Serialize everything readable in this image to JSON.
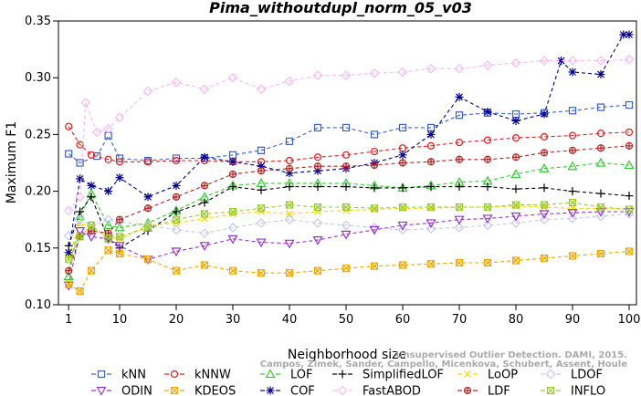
{
  "chart_data": {
    "type": "line",
    "title": "Pima_withoutdupl_norm_05_v03",
    "xlabel": "Neighborhood size",
    "ylabel": "Maximum F1",
    "xlim": [
      0,
      100
    ],
    "ylim": [
      0.1,
      0.35
    ],
    "x_ticks": [
      1,
      10,
      20,
      30,
      40,
      50,
      60,
      70,
      80,
      90,
      100
    ],
    "y_ticks": [
      "0.10",
      "0.15",
      "0.20",
      "0.25",
      "0.30",
      "0.35"
    ],
    "grid": false,
    "legend_position": "bottom",
    "credit_lines": [
      "Unsupervised Outlier Detection. DAMI, 2015.",
      "Campos, Zimek, Sander, Campello, Micenkova, Schubert, Assent, Houle"
    ],
    "series": [
      {
        "name": "kNN",
        "color": "#3a5fcd",
        "marker": "square",
        "line": "dashed",
        "points": [
          [
            1,
            0.233
          ],
          [
            3,
            0.225
          ],
          [
            6,
            0.231
          ],
          [
            8,
            0.249
          ],
          [
            10,
            0.229
          ],
          [
            15,
            0.227
          ],
          [
            20,
            0.229
          ],
          [
            25,
            0.229
          ],
          [
            30,
            0.232
          ],
          [
            35,
            0.236
          ],
          [
            40,
            0.244
          ],
          [
            45,
            0.256
          ],
          [
            50,
            0.256
          ],
          [
            55,
            0.25
          ],
          [
            60,
            0.256
          ],
          [
            65,
            0.256
          ],
          [
            70,
            0.267
          ],
          [
            75,
            0.269
          ],
          [
            80,
            0.268
          ],
          [
            85,
            0.269
          ],
          [
            90,
            0.271
          ],
          [
            95,
            0.274
          ],
          [
            100,
            0.276
          ]
        ]
      },
      {
        "name": "kNNW",
        "color": "#e41a1c",
        "marker": "circle",
        "line": "dashed",
        "points": [
          [
            1,
            0.257
          ],
          [
            3,
            0.241
          ],
          [
            5,
            0.232
          ],
          [
            8,
            0.228
          ],
          [
            10,
            0.226
          ],
          [
            15,
            0.226
          ],
          [
            20,
            0.227
          ],
          [
            25,
            0.227
          ],
          [
            30,
            0.226
          ],
          [
            35,
            0.226
          ],
          [
            40,
            0.227
          ],
          [
            45,
            0.23
          ],
          [
            50,
            0.232
          ],
          [
            55,
            0.235
          ],
          [
            60,
            0.238
          ],
          [
            65,
            0.24
          ],
          [
            70,
            0.243
          ],
          [
            75,
            0.245
          ],
          [
            80,
            0.247
          ],
          [
            85,
            0.248
          ],
          [
            90,
            0.249
          ],
          [
            95,
            0.251
          ],
          [
            100,
            0.252
          ]
        ]
      },
      {
        "name": "LOF",
        "color": "#33cc33",
        "marker": "triangle-up",
        "line": "dashed",
        "points": [
          [
            1,
            0.125
          ],
          [
            3,
            0.178
          ],
          [
            5,
            0.198
          ],
          [
            8,
            0.17
          ],
          [
            10,
            0.168
          ],
          [
            15,
            0.172
          ],
          [
            20,
            0.183
          ],
          [
            25,
            0.195
          ],
          [
            30,
            0.205
          ],
          [
            35,
            0.207
          ],
          [
            40,
            0.207
          ],
          [
            45,
            0.207
          ],
          [
            50,
            0.207
          ],
          [
            55,
            0.205
          ],
          [
            60,
            0.203
          ],
          [
            65,
            0.205
          ],
          [
            70,
            0.208
          ],
          [
            75,
            0.209
          ],
          [
            80,
            0.215
          ],
          [
            85,
            0.22
          ],
          [
            90,
            0.222
          ],
          [
            95,
            0.225
          ],
          [
            100,
            0.223
          ]
        ]
      },
      {
        "name": "SimplifiedLOF",
        "color": "#000000",
        "marker": "plus",
        "line": "dashed",
        "points": [
          [
            1,
            0.152
          ],
          [
            3,
            0.182
          ],
          [
            5,
            0.195
          ],
          [
            8,
            0.158
          ],
          [
            10,
            0.15
          ],
          [
            15,
            0.165
          ],
          [
            20,
            0.182
          ],
          [
            25,
            0.19
          ],
          [
            30,
            0.204
          ],
          [
            35,
            0.201
          ],
          [
            40,
            0.204
          ],
          [
            45,
            0.204
          ],
          [
            50,
            0.204
          ],
          [
            55,
            0.203
          ],
          [
            60,
            0.203
          ],
          [
            65,
            0.204
          ],
          [
            70,
            0.204
          ],
          [
            75,
            0.204
          ],
          [
            80,
            0.202
          ],
          [
            85,
            0.203
          ],
          [
            90,
            0.2
          ],
          [
            95,
            0.198
          ],
          [
            100,
            0.196
          ]
        ]
      },
      {
        "name": "LoOP",
        "color": "#ffd700",
        "marker": "x",
        "line": "dashed",
        "points": [
          [
            1,
            0.142
          ],
          [
            3,
            0.172
          ],
          [
            5,
            0.168
          ],
          [
            8,
            0.16
          ],
          [
            10,
            0.158
          ],
          [
            15,
            0.17
          ],
          [
            20,
            0.172
          ],
          [
            25,
            0.176
          ],
          [
            30,
            0.18
          ],
          [
            35,
            0.182
          ],
          [
            40,
            0.18
          ],
          [
            45,
            0.182
          ],
          [
            50,
            0.183
          ],
          [
            55,
            0.184
          ],
          [
            60,
            0.185
          ],
          [
            65,
            0.185
          ],
          [
            70,
            0.186
          ],
          [
            75,
            0.186
          ],
          [
            80,
            0.187
          ],
          [
            85,
            0.186
          ],
          [
            90,
            0.185
          ],
          [
            95,
            0.185
          ],
          [
            100,
            0.184
          ]
        ]
      },
      {
        "name": "LDOF",
        "color": "#c4c8ec",
        "marker": "diamond",
        "line": "dashed",
        "points": [
          [
            1,
            0.161
          ],
          [
            3,
            0.175
          ],
          [
            5,
            0.17
          ],
          [
            8,
            0.175
          ],
          [
            10,
            0.173
          ],
          [
            15,
            0.17
          ],
          [
            20,
            0.166
          ],
          [
            25,
            0.163
          ],
          [
            30,
            0.168
          ],
          [
            35,
            0.172
          ],
          [
            40,
            0.175
          ],
          [
            45,
            0.172
          ],
          [
            50,
            0.17
          ],
          [
            55,
            0.168
          ],
          [
            60,
            0.166
          ],
          [
            65,
            0.167
          ],
          [
            70,
            0.168
          ],
          [
            75,
            0.17
          ],
          [
            80,
            0.172
          ],
          [
            85,
            0.175
          ],
          [
            90,
            0.176
          ],
          [
            95,
            0.178
          ],
          [
            100,
            0.18
          ]
        ]
      },
      {
        "name": "ODIN",
        "color": "#9933cc",
        "marker": "triangle-down",
        "line": "dashed",
        "points": [
          [
            1,
            0.117
          ],
          [
            3,
            0.165
          ],
          [
            5,
            0.16
          ],
          [
            8,
            0.158
          ],
          [
            10,
            0.152
          ],
          [
            15,
            0.14
          ],
          [
            20,
            0.147
          ],
          [
            25,
            0.152
          ],
          [
            30,
            0.158
          ],
          [
            35,
            0.155
          ],
          [
            40,
            0.154
          ],
          [
            45,
            0.157
          ],
          [
            50,
            0.162
          ],
          [
            55,
            0.166
          ],
          [
            60,
            0.17
          ],
          [
            65,
            0.172
          ],
          [
            70,
            0.175
          ],
          [
            75,
            0.176
          ],
          [
            80,
            0.178
          ],
          [
            85,
            0.18
          ],
          [
            90,
            0.181
          ],
          [
            95,
            0.182
          ],
          [
            100,
            0.182
          ]
        ]
      },
      {
        "name": "KDEOS",
        "color": "#f0a800",
        "marker": "square-x",
        "line": "dashed",
        "points": [
          [
            1,
            0.118
          ],
          [
            3,
            0.112
          ],
          [
            5,
            0.13
          ],
          [
            8,
            0.148
          ],
          [
            10,
            0.145
          ],
          [
            15,
            0.14
          ],
          [
            20,
            0.13
          ],
          [
            25,
            0.135
          ],
          [
            30,
            0.13
          ],
          [
            35,
            0.128
          ],
          [
            40,
            0.128
          ],
          [
            45,
            0.13
          ],
          [
            50,
            0.132
          ],
          [
            55,
            0.134
          ],
          [
            60,
            0.135
          ],
          [
            65,
            0.136
          ],
          [
            70,
            0.137
          ],
          [
            75,
            0.137
          ],
          [
            80,
            0.139
          ],
          [
            85,
            0.141
          ],
          [
            90,
            0.143
          ],
          [
            95,
            0.145
          ],
          [
            100,
            0.147
          ]
        ]
      },
      {
        "name": "COF",
        "color": "#00008b",
        "marker": "asterisk",
        "line": "dashed",
        "points": [
          [
            1,
            0.146
          ],
          [
            3,
            0.211
          ],
          [
            5,
            0.205
          ],
          [
            8,
            0.2
          ],
          [
            10,
            0.212
          ],
          [
            15,
            0.195
          ],
          [
            20,
            0.205
          ],
          [
            25,
            0.23
          ],
          [
            30,
            0.226
          ],
          [
            35,
            0.222
          ],
          [
            40,
            0.216
          ],
          [
            45,
            0.218
          ],
          [
            50,
            0.22
          ],
          [
            55,
            0.225
          ],
          [
            60,
            0.232
          ],
          [
            65,
            0.25
          ],
          [
            70,
            0.283
          ],
          [
            75,
            0.27
          ],
          [
            80,
            0.262
          ],
          [
            85,
            0.268
          ],
          [
            88,
            0.315
          ],
          [
            90,
            0.305
          ],
          [
            95,
            0.303
          ],
          [
            99,
            0.338
          ],
          [
            100,
            0.338
          ]
        ]
      },
      {
        "name": "FastABOD",
        "color": "#f9b9f2",
        "marker": "diamond",
        "line": "dashed",
        "points": [
          [
            1,
            0.183
          ],
          [
            3,
            0.195
          ],
          [
            4,
            0.278
          ],
          [
            6,
            0.252
          ],
          [
            8,
            0.255
          ],
          [
            10,
            0.265
          ],
          [
            15,
            0.288
          ],
          [
            20,
            0.296
          ],
          [
            25,
            0.29
          ],
          [
            30,
            0.3
          ],
          [
            35,
            0.29
          ],
          [
            40,
            0.297
          ],
          [
            45,
            0.302
          ],
          [
            50,
            0.302
          ],
          [
            55,
            0.304
          ],
          [
            60,
            0.305
          ],
          [
            65,
            0.308
          ],
          [
            70,
            0.308
          ],
          [
            75,
            0.311
          ],
          [
            80,
            0.313
          ],
          [
            85,
            0.315
          ],
          [
            90,
            0.315
          ],
          [
            95,
            0.315
          ],
          [
            100,
            0.316
          ]
        ]
      },
      {
        "name": "LDF",
        "color": "#b22222",
        "marker": "circle-plus",
        "line": "dashed",
        "points": [
          [
            1,
            0.13
          ],
          [
            3,
            0.16
          ],
          [
            5,
            0.165
          ],
          [
            8,
            0.163
          ],
          [
            10,
            0.175
          ],
          [
            15,
            0.185
          ],
          [
            20,
            0.195
          ],
          [
            25,
            0.205
          ],
          [
            30,
            0.215
          ],
          [
            35,
            0.218
          ],
          [
            40,
            0.22
          ],
          [
            45,
            0.222
          ],
          [
            50,
            0.222
          ],
          [
            55,
            0.223
          ],
          [
            60,
            0.225
          ],
          [
            65,
            0.226
          ],
          [
            70,
            0.228
          ],
          [
            75,
            0.228
          ],
          [
            80,
            0.23
          ],
          [
            85,
            0.234
          ],
          [
            90,
            0.236
          ],
          [
            95,
            0.238
          ],
          [
            100,
            0.24
          ]
        ]
      },
      {
        "name": "INFLO",
        "color": "#99cc33",
        "marker": "square-x",
        "line": "dashed",
        "points": [
          [
            1,
            0.14
          ],
          [
            3,
            0.16
          ],
          [
            5,
            0.17
          ],
          [
            8,
            0.158
          ],
          [
            10,
            0.16
          ],
          [
            15,
            0.168
          ],
          [
            20,
            0.175
          ],
          [
            25,
            0.18
          ],
          [
            30,
            0.182
          ],
          [
            35,
            0.185
          ],
          [
            40,
            0.188
          ],
          [
            45,
            0.186
          ],
          [
            50,
            0.186
          ],
          [
            55,
            0.185
          ],
          [
            60,
            0.186
          ],
          [
            65,
            0.186
          ],
          [
            70,
            0.186
          ],
          [
            75,
            0.186
          ],
          [
            80,
            0.188
          ],
          [
            85,
            0.188
          ],
          [
            90,
            0.19
          ],
          [
            95,
            0.186
          ],
          [
            100,
            0.184
          ]
        ]
      }
    ]
  }
}
